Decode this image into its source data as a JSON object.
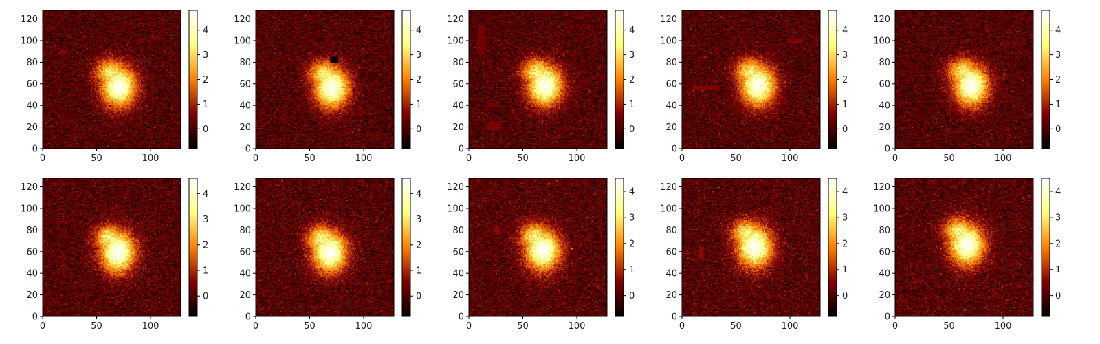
{
  "chart_data": [
    {
      "type": "heatmap",
      "xlim": [
        0,
        128
      ],
      "ylim": [
        0,
        128
      ],
      "x_ticks": [
        0,
        50,
        100
      ],
      "y_ticks": [
        0,
        20,
        40,
        60,
        80,
        100,
        120
      ],
      "cbar_range": [
        -0.8,
        4.8
      ],
      "cbar_ticks": [
        0,
        1,
        2,
        3,
        4
      ],
      "blob": {
        "cx": 70,
        "cy": 57,
        "peak": 4.6
      },
      "artifacts": [
        {
          "x": [
            16,
            22
          ],
          "y": [
            88,
            91
          ],
          "level": 0.6
        }
      ]
    },
    {
      "type": "heatmap",
      "xlim": [
        0,
        128
      ],
      "ylim": [
        0,
        128
      ],
      "x_ticks": [
        0,
        50,
        100
      ],
      "y_ticks": [
        0,
        20,
        40,
        60,
        80,
        100,
        120
      ],
      "cbar_range": [
        -0.8,
        4.8
      ],
      "cbar_ticks": [
        0,
        1,
        2,
        3,
        4
      ],
      "blob": {
        "cx": 70,
        "cy": 56,
        "peak": 4.6
      },
      "artifacts": [
        {
          "x": [
            69,
            75
          ],
          "y": [
            79,
            84
          ],
          "level": -0.7
        }
      ]
    },
    {
      "type": "heatmap",
      "xlim": [
        0,
        128
      ],
      "ylim": [
        0,
        128
      ],
      "x_ticks": [
        0,
        50,
        100
      ],
      "y_ticks": [
        0,
        20,
        40,
        60,
        80,
        100,
        120
      ],
      "cbar_range": [
        -0.8,
        4.8
      ],
      "cbar_ticks": [
        0,
        1,
        2,
        3,
        4
      ],
      "blob": {
        "cx": 70,
        "cy": 58,
        "peak": 4.6
      },
      "artifacts": [
        {
          "x": [
            8,
            14
          ],
          "y": [
            88,
            113
          ],
          "level": 0.45
        },
        {
          "x": [
            17,
            25
          ],
          "y": [
            39,
            42
          ],
          "level": 0.45
        },
        {
          "x": [
            17,
            28
          ],
          "y": [
            17,
            24
          ],
          "level": 0.55
        }
      ]
    },
    {
      "type": "heatmap",
      "xlim": [
        0,
        128
      ],
      "ylim": [
        0,
        128
      ],
      "x_ticks": [
        0,
        50,
        100
      ],
      "y_ticks": [
        0,
        20,
        40,
        60,
        80,
        100,
        120
      ],
      "cbar_range": [
        -0.8,
        4.8
      ],
      "cbar_ticks": [
        0,
        1,
        2,
        3,
        4
      ],
      "blob": {
        "cx": 70,
        "cy": 58,
        "peak": 4.6
      },
      "artifacts": [
        {
          "x": [
            10,
            34
          ],
          "y": [
            54,
            57
          ],
          "level": 0.6
        },
        {
          "x": [
            96,
            110
          ],
          "y": [
            98,
            101
          ],
          "level": 0.55
        }
      ]
    },
    {
      "type": "heatmap",
      "xlim": [
        0,
        128
      ],
      "ylim": [
        0,
        128
      ],
      "x_ticks": [
        0,
        50,
        100
      ],
      "y_ticks": [
        0,
        20,
        40,
        60,
        80,
        100,
        120
      ],
      "cbar_range": [
        -0.8,
        4.8
      ],
      "cbar_ticks": [
        0,
        1,
        2,
        3,
        4
      ],
      "blob": {
        "cx": 70,
        "cy": 58,
        "peak": 4.6
      },
      "artifacts": []
    },
    {
      "type": "heatmap",
      "xlim": [
        0,
        128
      ],
      "ylim": [
        0,
        128
      ],
      "x_ticks": [
        0,
        50,
        100
      ],
      "y_ticks": [
        0,
        20,
        40,
        60,
        80,
        100,
        120
      ],
      "cbar_range": [
        -0.8,
        4.6
      ],
      "cbar_ticks": [
        0,
        1,
        2,
        3,
        4
      ],
      "blob": {
        "cx": 69,
        "cy": 59,
        "peak": 4.5
      },
      "artifacts": []
    },
    {
      "type": "heatmap",
      "xlim": [
        0,
        128
      ],
      "ylim": [
        0,
        128
      ],
      "x_ticks": [
        0,
        50,
        100
      ],
      "y_ticks": [
        0,
        20,
        40,
        60,
        80,
        100,
        120
      ],
      "cbar_range": [
        -0.8,
        4.6
      ],
      "cbar_ticks": [
        0,
        1,
        2,
        3,
        4
      ],
      "blob": {
        "cx": 68,
        "cy": 59,
        "peak": 4.5
      },
      "artifacts": []
    },
    {
      "type": "heatmap",
      "xlim": [
        0,
        128
      ],
      "ylim": [
        0,
        128
      ],
      "x_ticks": [
        0,
        50,
        100
      ],
      "y_ticks": [
        0,
        20,
        40,
        60,
        80,
        100,
        120
      ],
      "cbar_range": [
        -0.8,
        4.5
      ],
      "cbar_ticks": [
        0,
        1,
        2,
        3,
        4
      ],
      "blob": {
        "cx": 68,
        "cy": 61,
        "peak": 4.4
      },
      "artifacts": [
        {
          "x": [
            24,
            28
          ],
          "y": [
            76,
            82
          ],
          "level": 0.6
        }
      ]
    },
    {
      "type": "heatmap",
      "xlim": [
        0,
        128
      ],
      "ylim": [
        0,
        128
      ],
      "x_ticks": [
        0,
        50,
        100
      ],
      "y_ticks": [
        0,
        20,
        40,
        60,
        80,
        100,
        120
      ],
      "cbar_range": [
        -0.8,
        4.5
      ],
      "cbar_ticks": [
        0,
        1,
        2,
        3,
        4
      ],
      "blob": {
        "cx": 67,
        "cy": 64,
        "peak": 4.4
      },
      "artifacts": [
        {
          "x": [
            16,
            19
          ],
          "y": [
            53,
            64
          ],
          "level": 0.6
        }
      ]
    },
    {
      "type": "heatmap",
      "xlim": [
        0,
        128
      ],
      "ylim": [
        0,
        128
      ],
      "x_ticks": [
        0,
        50,
        100
      ],
      "y_ticks": [
        0,
        20,
        40,
        60,
        80,
        100,
        120
      ],
      "cbar_range": [
        -0.8,
        4.5
      ],
      "cbar_ticks": [
        0,
        1,
        2,
        3,
        4
      ],
      "blob": {
        "cx": 66,
        "cy": 66,
        "peak": 4.4
      },
      "artifacts": []
    }
  ],
  "colormap": "afmhot"
}
